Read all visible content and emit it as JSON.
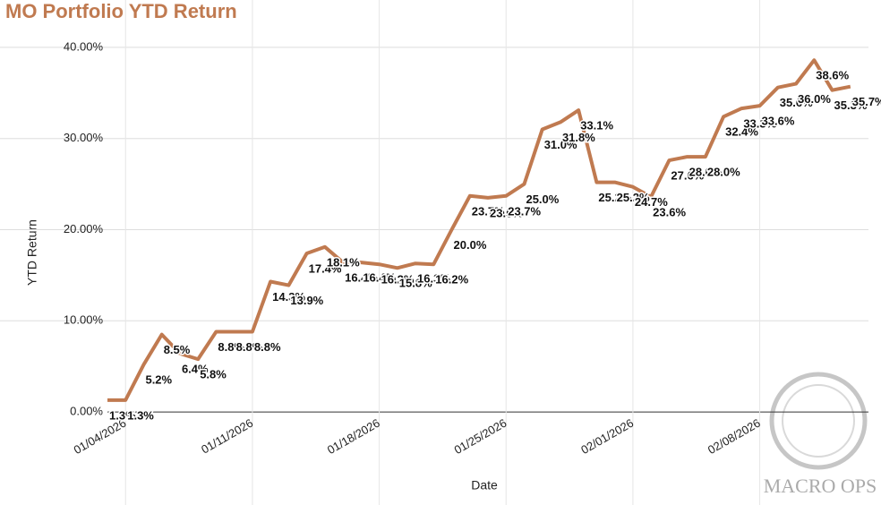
{
  "chart_data": {
    "type": "line",
    "title": "MO Portfolio YTD Return",
    "x_label": "Date",
    "y_label": "YTD Return",
    "logo": "MACRO OPS",
    "x": [
      "01/03/2026",
      "01/04/2026",
      "01/05/2026",
      "01/06/2026",
      "01/07/2026",
      "01/08/2026",
      "01/09/2026",
      "01/10/2026",
      "01/11/2026",
      "01/12/2026",
      "01/13/2026",
      "01/14/2026",
      "01/15/2026",
      "01/16/2026",
      "01/17/2026",
      "01/18/2026",
      "01/19/2026",
      "01/20/2026",
      "01/21/2026",
      "01/22/2026",
      "01/23/2026",
      "01/24/2026",
      "01/25/2026",
      "01/26/2026",
      "01/27/2026",
      "01/28/2026",
      "01/29/2026",
      "01/30/2026",
      "01/31/2026",
      "02/01/2026",
      "02/02/2026",
      "02/03/2026",
      "02/04/2026",
      "02/05/2026",
      "02/06/2026",
      "02/07/2026",
      "02/08/2026",
      "02/09/2026",
      "02/10/2026",
      "02/11/2026",
      "02/12/2026",
      "02/13/2026"
    ],
    "series": [
      {
        "name": "YTD Return",
        "color": "#c07a50",
        "values": [
          1.3,
          1.3,
          5.2,
          8.5,
          6.4,
          5.8,
          8.8,
          8.8,
          8.8,
          14.3,
          13.9,
          17.4,
          18.1,
          16.4,
          16.4,
          16.2,
          15.8,
          16.3,
          16.2,
          20.0,
          23.7,
          23.5,
          23.7,
          25.0,
          31.0,
          31.8,
          33.1,
          25.2,
          25.2,
          24.7,
          23.6,
          27.6,
          28.0,
          28.0,
          32.4,
          33.3,
          33.6,
          35.6,
          36.0,
          38.6,
          35.3,
          35.7
        ],
        "value_labels": [
          "1.3%",
          "1.3%",
          "5.2%",
          "8.5%",
          "6.4%",
          "5.8%",
          "8.8%",
          "8.8%",
          "8.8%",
          "14.3%",
          "13.9%",
          "17.4%",
          "18.1%",
          "16.4%",
          "16.4%",
          "16.2%",
          "15.8%",
          "16.3%",
          "16.2%",
          "20.0%",
          "23.7%",
          "23.5%",
          "23.7%",
          "25.0%",
          "31.0%",
          "31.8%",
          "33.1%",
          "25.2%",
          "25.2%",
          "24.7%",
          "23.6%",
          "27.6%",
          "28.0%",
          "28.0%",
          "32.4%",
          "33.3%",
          "33.6%",
          "35.6%",
          "36.0%",
          "38.6%",
          "35.3%",
          "35.7%"
        ]
      }
    ],
    "xlim": [
      "01/03/2026",
      "02/14/2026"
    ],
    "xticks": [
      "01/04/2026",
      "01/11/2026",
      "01/18/2026",
      "01/25/2026",
      "02/01/2026",
      "02/08/2026"
    ],
    "ylim": [
      -5,
      45
    ],
    "yticks": [
      {
        "value": 0,
        "label": "0.00%"
      },
      {
        "value": 10,
        "label": "10.00%"
      },
      {
        "value": 20,
        "label": "20.00%"
      },
      {
        "value": 30,
        "label": "30.00%"
      },
      {
        "value": 40,
        "label": "40.00%"
      }
    ],
    "grid": true
  }
}
